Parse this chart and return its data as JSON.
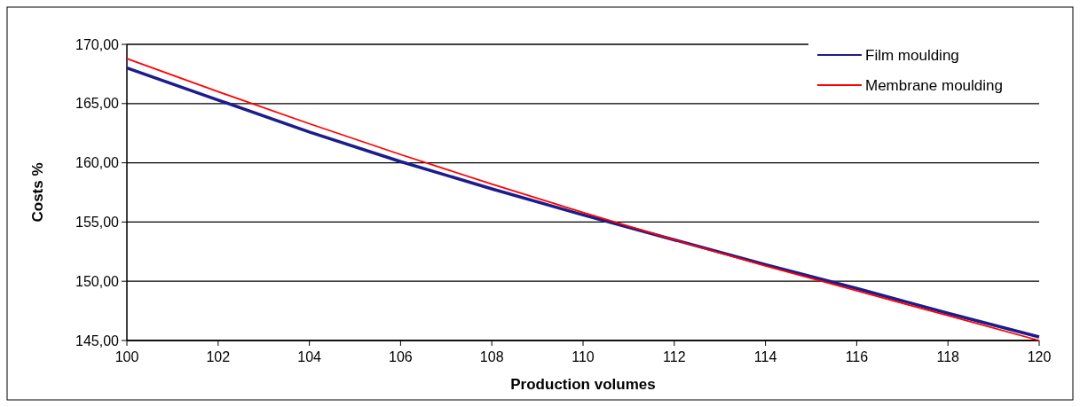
{
  "chart_data": {
    "type": "line",
    "xlabel": "Production volumes",
    "ylabel": "Costs %",
    "x": [
      100,
      102,
      104,
      106,
      108,
      110,
      112,
      114,
      116,
      118,
      120
    ],
    "series": [
      {
        "name": "Film moulding",
        "color": "#1c1c8c",
        "values": [
          168.0,
          165.3,
          162.6,
          160.1,
          157.8,
          155.6,
          153.5,
          151.4,
          149.4,
          147.3,
          145.3
        ]
      },
      {
        "name": "Membrane moulding",
        "color": "#ff0000",
        "values": [
          168.8,
          166.0,
          163.3,
          160.7,
          158.2,
          155.8,
          153.5,
          151.3,
          149.2,
          147.1,
          145.0
        ]
      }
    ],
    "xlim": [
      100,
      120
    ],
    "xticks": [
      100,
      102,
      104,
      106,
      108,
      110,
      112,
      114,
      116,
      118,
      120
    ],
    "ylim": [
      145,
      170
    ],
    "yticks": [
      {
        "value": 145,
        "label": "145,00"
      },
      {
        "value": 150,
        "label": "150,00"
      },
      {
        "value": 155,
        "label": "155,00"
      },
      {
        "value": 160,
        "label": "160,00"
      },
      {
        "value": 165,
        "label": "165,00"
      },
      {
        "value": 170,
        "label": "170,00"
      }
    ],
    "grid": "y",
    "legend": "top right",
    "marker": "none",
    "line_style": "solid"
  }
}
